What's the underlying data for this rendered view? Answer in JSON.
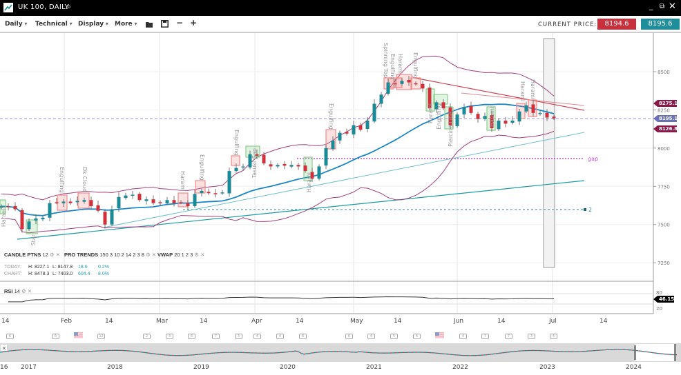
{
  "window": {
    "title": "UK 100, DAILY"
  },
  "toolbar": {
    "menus": [
      "Daily",
      "Technical",
      "Display",
      "More"
    ],
    "current_price_label": "CURRENT PRICE:",
    "bid": "8194.6",
    "ask": "8195.6"
  },
  "colors": {
    "up": "#1a8a96",
    "down": "#d0323c",
    "ma": "#1a86c8",
    "bands": "#a0407a",
    "bid_bg": "#c8303c",
    "ask_bg": "#1e8e9a"
  },
  "price_axis": [
    "8500",
    "8250",
    "8000",
    "7750",
    "7500",
    "7250"
  ],
  "price_tags": {
    "upper": "8275.1",
    "last": "8195.1",
    "lower": "8126.8"
  },
  "annotations": {
    "gap": "gap",
    "level": "2"
  },
  "patterns": [
    "Engulfing",
    "Dk Cloud",
    "Harami",
    "Engulfing",
    "Engulfing",
    "Engulfing",
    "Spinning Top",
    "Engulfing",
    "Harami",
    "Engulfing",
    "Harami",
    "Harami",
    "Harami",
    "Star",
    "Tasuki Gap",
    "Harami",
    "Harami",
    "Engulfing",
    "Piercing Line",
    "Harami"
  ],
  "indicators": {
    "candle": {
      "name": "CANDLE PTNS",
      "params": "12"
    },
    "pro": {
      "name": "PRO TRENDS",
      "params": "150 3 10 2 14 2 3 8"
    },
    "vwap": {
      "name": "VWAP",
      "params": "20 1 2 3"
    },
    "rsi": {
      "name": "RSI",
      "params": "14",
      "value": "46.15",
      "axis": [
        "80",
        "20"
      ]
    }
  },
  "stats": {
    "today": {
      "label": "TODAY:",
      "h": "H: 8227.1",
      "l": "L: 8147.8",
      "chg": "18.6",
      "pct": "0.2%"
    },
    "chart": {
      "label": "CHART:",
      "h": "H: 8478.3",
      "l": "L: 7403.0",
      "chg": "604.4",
      "pct": "8.0%"
    }
  },
  "x_axis": [
    "14",
    "Feb",
    "14",
    "Mar",
    "14",
    "Apr",
    "14",
    "May",
    "14",
    "Jun",
    "14",
    "Jul",
    "14"
  ],
  "events": [
    "6",
    "6",
    "12",
    "2",
    "3",
    "6",
    "7",
    "3",
    "4",
    "4",
    "8",
    "6",
    "4",
    "5",
    "6",
    "4",
    "7",
    "7",
    "3",
    "4"
  ],
  "navigator": {
    "years": [
      "16",
      "2017",
      "2018",
      "2019",
      "2020",
      "2021",
      "2022",
      "2023",
      "2024"
    ]
  },
  "chart_data": {
    "type": "candlestick",
    "symbol": "UK 100",
    "interval": "daily",
    "closes": [
      7620,
      7615,
      7600,
      7470,
      7520,
      7540,
      7545,
      7640,
      7645,
      7650,
      7640,
      7655,
      7660,
      7620,
      7590,
      7500,
      7600,
      7680,
      7690,
      7695,
      7660,
      7665,
      7640,
      7645,
      7660,
      7640,
      7645,
      7620,
      7700,
      7720,
      7705,
      7700,
      7710,
      7850,
      7870,
      7880,
      7960,
      7950,
      7900,
      7880,
      7890,
      7885,
      7890,
      7880,
      7850,
      7800,
      7880,
      8000,
      8050,
      8100,
      8095,
      8150,
      8120,
      8180,
      8290,
      8350,
      8430,
      8420,
      8440,
      8430,
      8420,
      8390,
      8260,
      8300,
      8260,
      8150,
      8220,
      8270,
      8230,
      8190,
      8210,
      8130,
      8180,
      8160,
      8180,
      8240,
      8280,
      8230,
      8230,
      8200,
      8195
    ],
    "ylim": [
      7180,
      8600
    ],
    "overlays": [
      "Bollinger Bands",
      "Moving Average",
      "RSI 14"
    ]
  }
}
